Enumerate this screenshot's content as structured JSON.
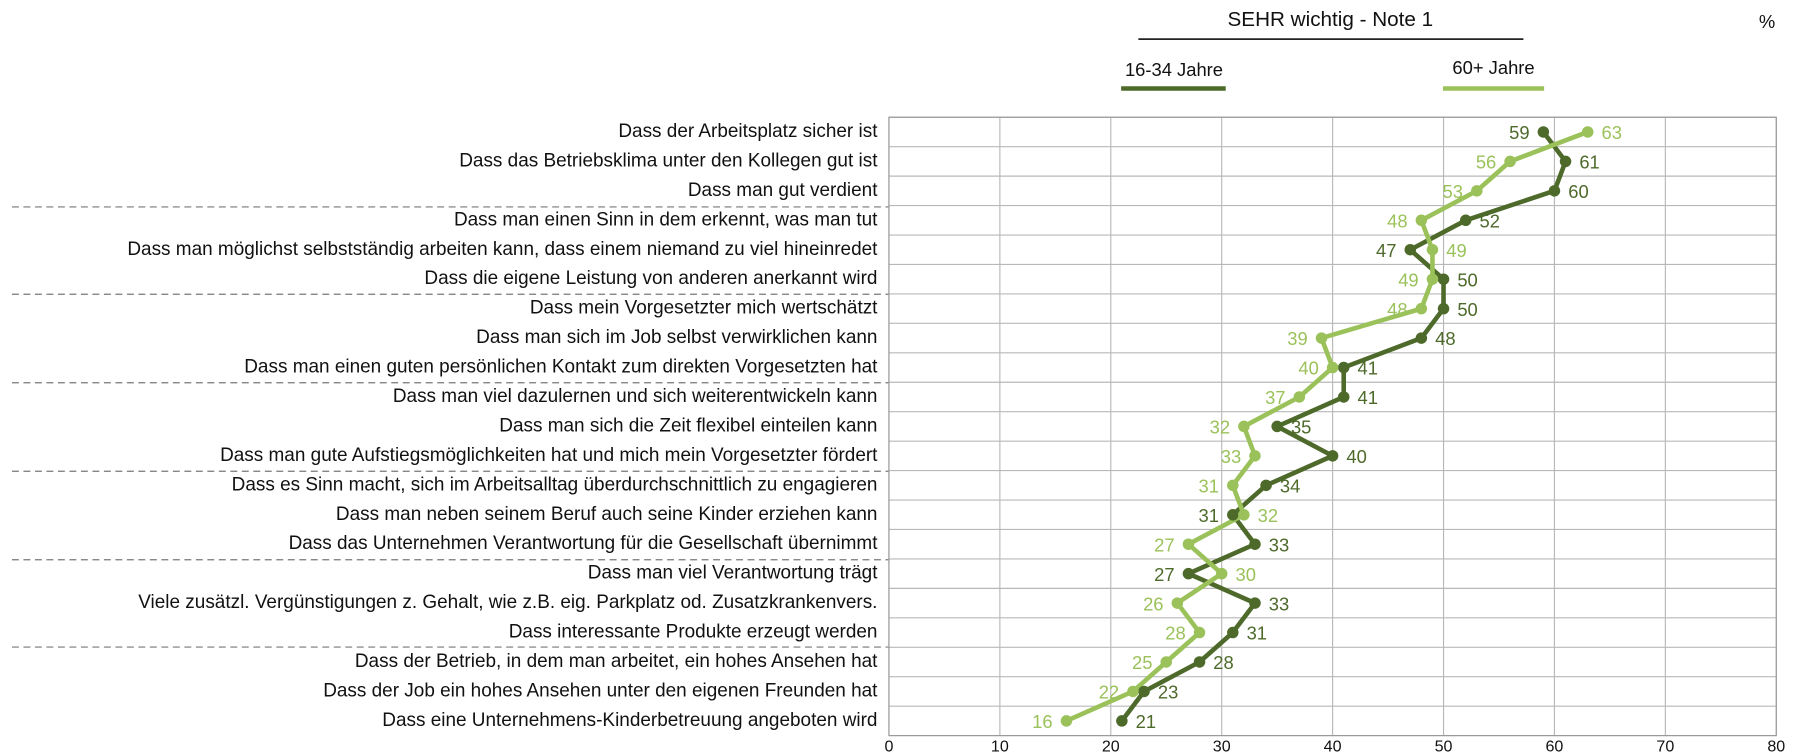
{
  "chart_data": {
    "type": "line",
    "title": "SEHR wichtig - Note 1",
    "unit": "%",
    "categories": [
      "Dass der Arbeitsplatz sicher ist",
      "Dass das Betriebsklima unter den Kollegen gut ist",
      "Dass man gut verdient",
      "Dass man einen Sinn in dem erkennt, was man tut",
      "Dass man möglichst selbstständig arbeiten kann, dass einem niemand zu viel hineinredet",
      "Dass die eigene Leistung von anderen anerkannt wird",
      "Dass mein Vorgesetzter mich wertschätzt",
      "Dass man sich im Job selbst verwirklichen kann",
      "Dass man einen guten persönlichen Kontakt zum direkten Vorgesetzten hat",
      "Dass man viel dazulernen und sich weiterentwickeln kann",
      "Dass man sich die Zeit flexibel einteilen kann",
      "Dass man gute Aufstiegsmöglichkeiten hat und mich mein Vorgesetzter fördert",
      "Dass es Sinn macht, sich im Arbeitsalltag überdurchschnittlich zu engagieren",
      "Dass man neben seinem Beruf auch seine Kinder erziehen kann",
      "Dass das Unternehmen Verantwortung für die Gesellschaft übernimmt",
      "Dass man viel Verantwortung trägt",
      "Viele zusätzl. Vergünstigungen z. Gehalt, wie z.B. eig. Parkplatz od. Zusatzkrankenvers.",
      "Dass interessante Produkte erzeugt werden",
      "Dass der Betrieb, in dem man arbeitet, ein hohes Ansehen hat",
      "Dass der Job ein hohes Ansehen unter den eigenen Freunden hat",
      "Dass eine Unternehmens-Kinderbetreuung angeboten wird"
    ],
    "series": [
      {
        "name": "16-34 Jahre",
        "color": "#4e6a2b",
        "values": [
          59,
          61,
          60,
          52,
          47,
          50,
          50,
          48,
          41,
          41,
          35,
          40,
          34,
          31,
          33,
          27,
          33,
          31,
          28,
          23,
          21
        ]
      },
      {
        "name": "60+ Jahre",
        "color": "#9bc25a",
        "values": [
          63,
          56,
          53,
          48,
          49,
          49,
          48,
          39,
          40,
          37,
          32,
          33,
          31,
          32,
          27,
          30,
          26,
          28,
          25,
          22,
          16
        ]
      }
    ],
    "xlim": [
      0,
      80
    ],
    "xticks": [
      0,
      10,
      20,
      30,
      40,
      50,
      60,
      70,
      80
    ],
    "grid": true
  }
}
